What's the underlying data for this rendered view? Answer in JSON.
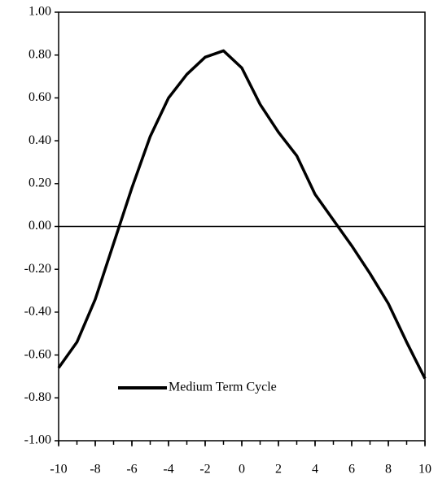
{
  "chart_data": {
    "type": "line",
    "x": [
      -10,
      -9,
      -8,
      -7,
      -6,
      -5,
      -4,
      -3,
      -2,
      -1,
      0,
      1,
      2,
      3,
      4,
      5,
      6,
      7,
      8,
      9,
      10
    ],
    "series": [
      {
        "name": "Medium Term Cycle",
        "color": "#000000",
        "values": [
          -0.66,
          -0.54,
          -0.34,
          -0.08,
          0.18,
          0.42,
          0.6,
          0.71,
          0.79,
          0.82,
          0.74,
          0.57,
          0.44,
          0.33,
          0.15,
          0.03,
          -0.09,
          -0.22,
          -0.36,
          -0.54,
          -0.71
        ]
      }
    ],
    "xlim": [
      -10,
      10
    ],
    "xticks": [
      -10,
      -8,
      -6,
      -4,
      -2,
      0,
      2,
      4,
      6,
      8,
      10
    ],
    "ylim": [
      -1,
      1
    ],
    "yticks": [
      {
        "value": -1,
        "label": "-1.00"
      },
      {
        "value": -0.8,
        "label": "-0.80"
      },
      {
        "value": -0.6,
        "label": "-0.60"
      },
      {
        "value": -0.4,
        "label": "-0.40"
      },
      {
        "value": -0.2,
        "label": "-0.20"
      },
      {
        "value": 0,
        "label": "0.00"
      },
      {
        "value": 0.2,
        "label": "0.20"
      },
      {
        "value": 0.4,
        "label": "0.40"
      },
      {
        "value": 0.6,
        "label": "0.60"
      },
      {
        "value": 0.8,
        "label": "0.80"
      },
      {
        "value": 1,
        "label": "1.00"
      }
    ],
    "legend": "lower left",
    "grid": false
  }
}
